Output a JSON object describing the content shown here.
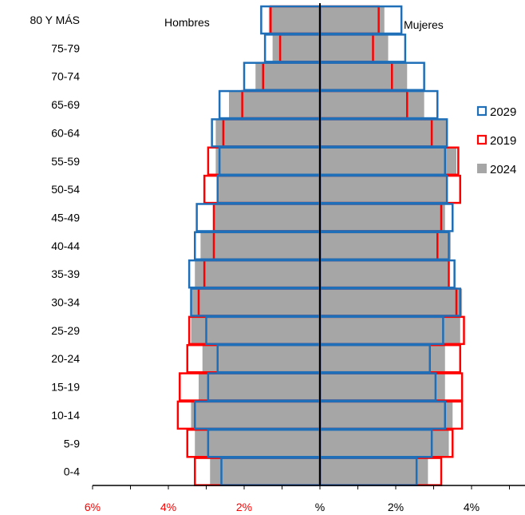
{
  "chart_data": {
    "type": "bar",
    "orientation": "horizontal-population-pyramid",
    "categories": [
      "80 Y MÁS",
      "75-79",
      "70-74",
      "65-69",
      "60-64",
      "55-59",
      "50-54",
      "45-49",
      "40-44",
      "35-39",
      "30-34",
      "25-29",
      "20-24",
      "15-19",
      "10-14",
      "5-9",
      "0-4"
    ],
    "left_label": "Hombres",
    "right_label": "Mujeres",
    "series": [
      {
        "name": "2029",
        "style": "outline",
        "color": "#1f6fb8",
        "hombres": [
          1.55,
          1.45,
          2.0,
          2.65,
          2.85,
          2.65,
          2.7,
          3.25,
          3.3,
          3.45,
          3.4,
          3.0,
          2.7,
          2.95,
          3.3,
          2.95,
          2.6
        ],
        "mujeres": [
          2.15,
          2.25,
          2.75,
          3.1,
          3.35,
          3.3,
          3.35,
          3.5,
          3.4,
          3.55,
          3.7,
          3.25,
          2.9,
          3.05,
          3.3,
          2.95,
          2.55
        ]
      },
      {
        "name": "2019",
        "style": "outline",
        "color": "#ff0000",
        "hombres": [
          1.3,
          1.05,
          1.5,
          2.05,
          2.55,
          2.95,
          3.05,
          2.8,
          2.8,
          3.05,
          3.2,
          3.45,
          3.5,
          3.7,
          3.75,
          3.5,
          3.3
        ],
        "mujeres": [
          1.55,
          1.4,
          1.9,
          2.3,
          2.95,
          3.65,
          3.7,
          3.2,
          3.1,
          3.4,
          3.6,
          3.8,
          3.7,
          3.75,
          3.75,
          3.5,
          3.2
        ]
      },
      {
        "name": "2024",
        "style": "fill",
        "color": "#a6a6a6",
        "hombres": [
          1.35,
          1.25,
          1.7,
          2.4,
          2.75,
          2.75,
          2.7,
          2.8,
          3.15,
          3.3,
          3.4,
          3.4,
          3.1,
          3.2,
          3.4,
          3.3,
          2.9
        ],
        "mujeres": [
          1.7,
          1.8,
          2.3,
          2.75,
          3.35,
          3.6,
          3.35,
          3.3,
          3.45,
          3.4,
          3.75,
          3.7,
          3.3,
          3.3,
          3.5,
          3.4,
          2.85
        ]
      }
    ],
    "xaxis": {
      "range_left": 6,
      "range_right": 5.5,
      "ticks_left": [
        {
          "value": 6,
          "label": "6%"
        },
        {
          "value": 4,
          "label": "4%"
        },
        {
          "value": 2,
          "label": "2%"
        }
      ],
      "center_label": "%",
      "ticks_right": [
        {
          "value": 2,
          "label": "2%"
        },
        {
          "value": 4,
          "label": "4%"
        }
      ],
      "left_tick_color": "#ff0000",
      "right_tick_color": "#000000"
    },
    "legend": {
      "placement": "right",
      "entries": [
        "2029",
        "2019",
        "2024"
      ]
    },
    "grid": false
  }
}
